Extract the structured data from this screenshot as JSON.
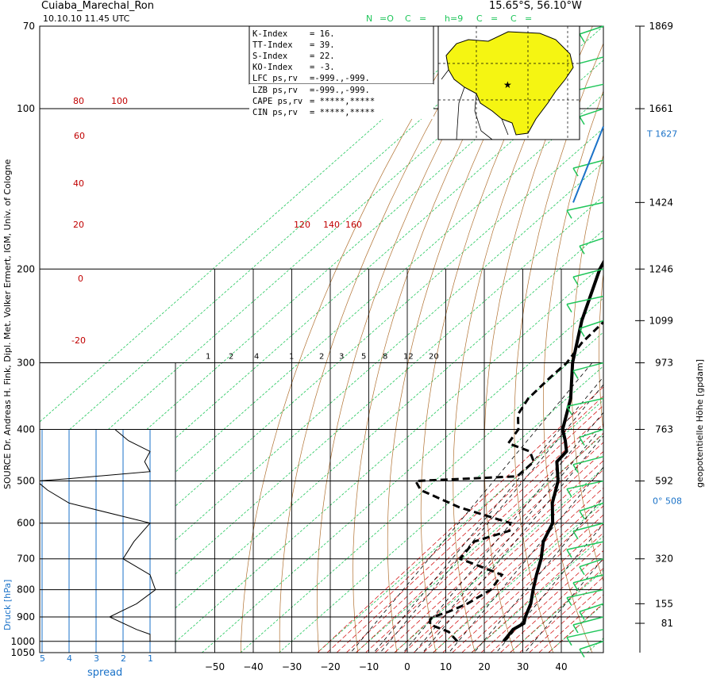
{
  "header": {
    "station": "Cuiaba_Marechal_Ron",
    "datetime": "10.10.10  11.45 UTC",
    "coords": "15.65°S, 56.10°W",
    "cloud_nh": "N",
    "cloud_nh_val": "=O",
    "cloud_cl": "C",
    "cloud_cl_eq": "=",
    "cloud_h": "h=9",
    "cloud_cm": "C",
    "cloud_cm_eq": "=",
    "cloud_ch": "C",
    "cloud_ch_eq": "="
  },
  "indices": [
    {
      "label": "K-Index",
      "value": "=          16."
    },
    {
      "label": "TT-Index",
      "value": "=          39."
    },
    {
      "label": "S-Index",
      "value": "=          22."
    },
    {
      "label": "KO-Index",
      "value": "=          -3."
    },
    {
      "label": "LFC ps,rv",
      "value": "=-999.,-999."
    },
    {
      "label": "LZB  ps,rv",
      "value": "=-999.,-999."
    },
    {
      "label": "CAPE ps,rv",
      "value": "=  *****,*****"
    },
    {
      "label": "CIN  ps,rv",
      "value": "=  *****,*****"
    }
  ],
  "side_labels": {
    "left": "SOURCE Dr. Andreas H. Fink, Dipl. Met. Volker Ermert, IGM, Univ. of Cologne",
    "right": "geopotentielle Höhe [gpdam]",
    "druck": "Druck [hPa]",
    "spread": "spread"
  },
  "chart_data": {
    "type": "line",
    "title": "Cuiaba_Marechal_Ron",
    "xlabel": "",
    "ylabel": "Druck [hPa]",
    "xlim": [
      -60,
      40
    ],
    "pressure_ticks": [
      70,
      100,
      200,
      300,
      400,
      500,
      600,
      700,
      800,
      900,
      1000,
      1050
    ],
    "pressure_tick_labels": [
      "70",
      "100",
      "200",
      "300",
      "400",
      "500",
      "600",
      "700",
      "800",
      "900",
      "1000",
      "1050"
    ],
    "temp_ticks": [
      -50,
      -40,
      -30,
      -20,
      -10,
      0,
      10,
      20,
      30,
      40
    ],
    "temp_tick_labels": [
      "−50",
      "−40",
      "−30",
      "−20",
      "−10",
      "0",
      "10",
      "20",
      "30",
      "40"
    ],
    "height_labels": [
      {
        "p": 70,
        "text": "1869"
      },
      {
        "p": 100,
        "text": "1661"
      },
      {
        "p": 150,
        "text": "1424"
      },
      {
        "p": 200,
        "text": "1246"
      },
      {
        "p": 250,
        "text": "1099"
      },
      {
        "p": 300,
        "text": "973"
      },
      {
        "p": 400,
        "text": "763"
      },
      {
        "p": 500,
        "text": "592"
      },
      {
        "p": 700,
        "text": "320"
      },
      {
        "p": 850,
        "text": "155"
      },
      {
        "p": 925,
        "text": "81"
      }
    ],
    "tropopause_label": "T   1627",
    "tropopause_p": 108,
    "zero_label": "0°   508",
    "zero_p": 545,
    "mixing_ratio_labels": [
      "1",
      "2",
      "4",
      "1",
      "2",
      "3",
      "5",
      "8",
      "12",
      "20"
    ],
    "mixing_ratio_values": [
      1,
      2,
      4,
      1,
      2,
      3,
      5,
      8,
      12,
      20
    ],
    "potential_temp_labels": [
      "80",
      "100",
      "60",
      "40",
      "20",
      "0",
      "-20",
      "120",
      "140",
      "160"
    ],
    "spread_ticks": [
      "5",
      "4",
      "3",
      "2",
      "1"
    ],
    "series": [
      {
        "name": "",
        "style": "solid",
        "points": [
          [
            1000,
            25.0
          ],
          [
            950,
            24.0
          ],
          [
            925,
            25.0
          ],
          [
            900,
            23.5
          ],
          [
            850,
            21.0
          ],
          [
            800,
            17.5
          ],
          [
            750,
            14.0
          ],
          [
            700,
            10.5
          ],
          [
            650,
            6.0
          ],
          [
            600,
            3.0
          ],
          [
            550,
            -3.0
          ],
          [
            500,
            -8.0
          ],
          [
            460,
            -14.0
          ],
          [
            440,
            -14.5
          ],
          [
            420,
            -18.0
          ],
          [
            400,
            -22.0
          ],
          [
            350,
            -29.0
          ],
          [
            300,
            -39.0
          ],
          [
            250,
            -49.0
          ],
          [
            200,
            -59.5
          ],
          [
            150,
            -69.5
          ],
          [
            125,
            -73.0
          ],
          [
            100,
            -75.5
          ],
          [
            90,
            -75.0
          ],
          [
            80,
            -70.0
          ],
          [
            70,
            -68.0
          ]
        ]
      },
      {
        "name": "",
        "style": "dashed",
        "points": [
          [
            1000,
            13.0
          ],
          [
            960,
            8.0
          ],
          [
            930,
            1.0
          ],
          [
            910,
            -0.5
          ],
          [
            900,
            -0.5
          ],
          [
            880,
            2.0
          ],
          [
            850,
            4.5
          ],
          [
            800,
            6.5
          ],
          [
            750,
            5.0
          ],
          [
            700,
            -10.5
          ],
          [
            650,
            -12.0
          ],
          [
            620,
            -6.0
          ],
          [
            600,
            -8.0
          ],
          [
            560,
            -26.0
          ],
          [
            520,
            -41.0
          ],
          [
            500,
            -45.0
          ],
          [
            490,
            -20.0
          ],
          [
            460,
            -20.0
          ],
          [
            440,
            -24.0
          ],
          [
            425,
            -32.0
          ],
          [
            400,
            -33.5
          ],
          [
            375,
            -38.0
          ],
          [
            350,
            -40.0
          ],
          [
            320,
            -40.5
          ],
          [
            300,
            -40.5
          ],
          [
            275,
            -42.5
          ],
          [
            250,
            -43.0
          ],
          [
            220,
            -51.0
          ],
          [
            200,
            -55.0
          ],
          [
            160,
            -63.0
          ],
          [
            140,
            -72.5
          ],
          [
            120,
            -83.0
          ],
          [
            100,
            -91.0
          ],
          [
            90,
            -88.0
          ],
          [
            80,
            -76.0
          ],
          [
            75,
            -78.0
          ],
          [
            70,
            -92.0
          ]
        ]
      },
      {
        "name": "spread",
        "style": "thin",
        "points": [
          [
            1000,
            1.0
          ],
          [
            970,
            1.0
          ],
          [
            950,
            1.5
          ],
          [
            900,
            2.5
          ],
          [
            850,
            1.5
          ],
          [
            800,
            0.8
          ],
          [
            750,
            1.0
          ],
          [
            700,
            2.0
          ],
          [
            650,
            1.6
          ],
          [
            600,
            1.0
          ],
          [
            550,
            4.0
          ],
          [
            520,
            4.8
          ],
          [
            500,
            5.2
          ],
          [
            495,
            4.0
          ],
          [
            480,
            1.0
          ],
          [
            460,
            1.2
          ],
          [
            440,
            1.0
          ],
          [
            420,
            1.8
          ],
          [
            400,
            2.3
          ]
        ]
      }
    ],
    "colors": {
      "grid_black": "#000000",
      "dry_adiabat": "#b07030",
      "moist_adiabat": "#d00000",
      "isotherm_green": "#1fc65a",
      "spread_blue": "#1a72c8",
      "map_fill": "#f5f512"
    }
  }
}
